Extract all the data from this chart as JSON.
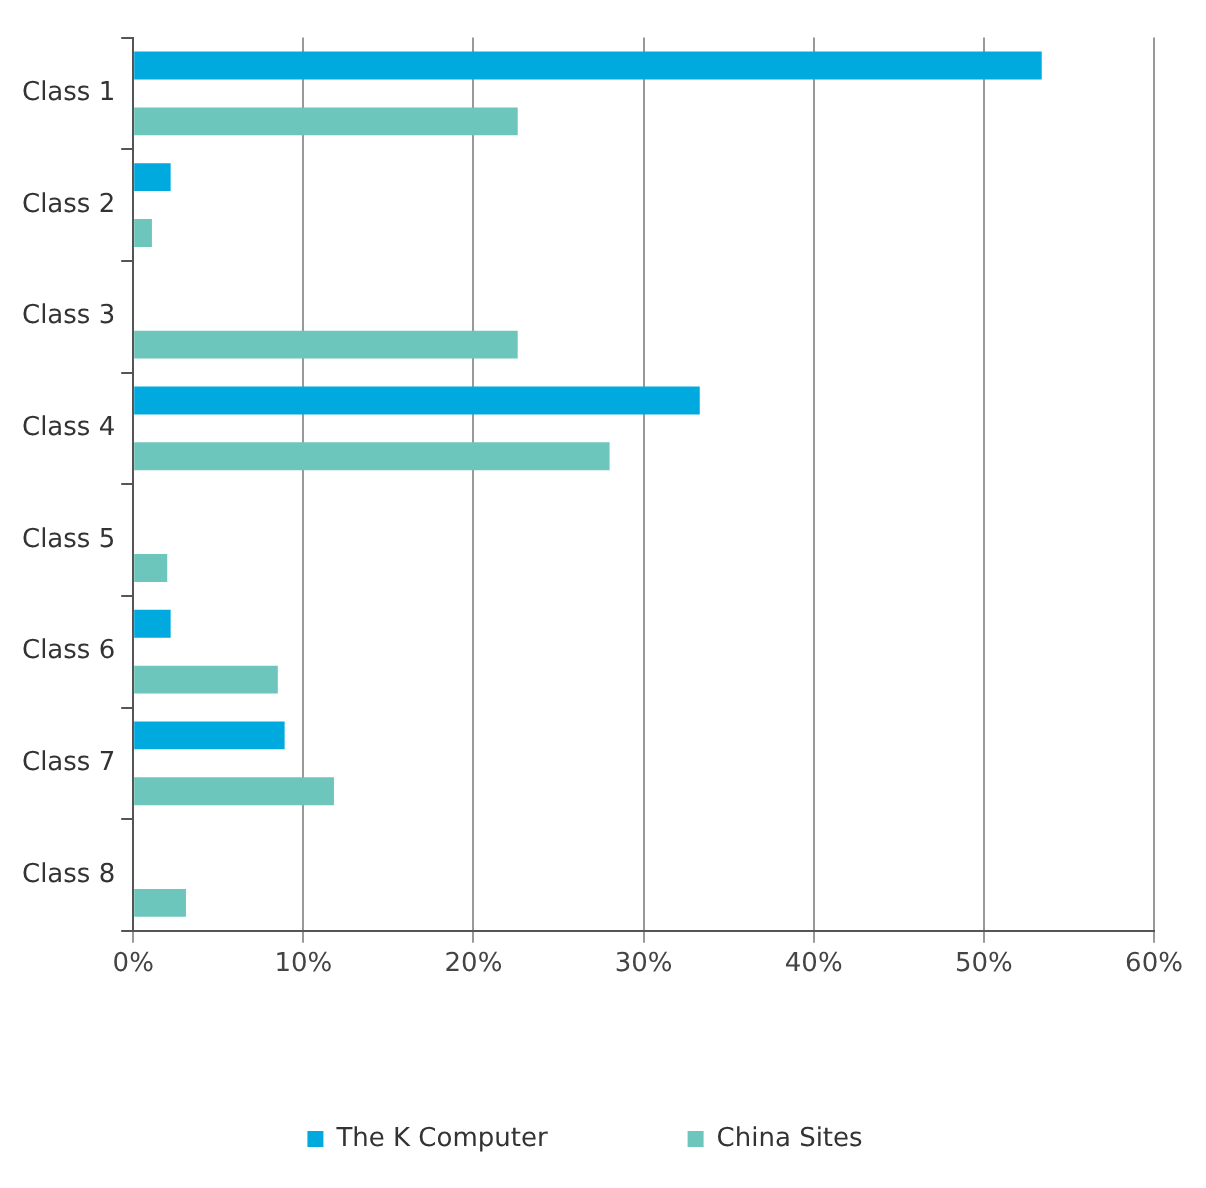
{
  "chart_data": {
    "type": "bar",
    "orientation": "horizontal",
    "categories": [
      "Class 1",
      "Class 2",
      "Class 3",
      "Class 4",
      "Class 5",
      "Class 6",
      "Class 7",
      "Class 8"
    ],
    "series": [
      {
        "name": "The K Computer",
        "color": "#00aade",
        "values": [
          53.4,
          2.2,
          0,
          33.3,
          0,
          2.2,
          8.9,
          0
        ]
      },
      {
        "name": "China Sites",
        "color": "#6cc6bb",
        "values": [
          22.6,
          1.1,
          22.6,
          28.0,
          2.0,
          8.5,
          11.8,
          3.1
        ]
      }
    ],
    "xlim": [
      0,
      60
    ],
    "xticks": [
      {
        "value": 0,
        "label": "0%"
      },
      {
        "value": 10,
        "label": "10%"
      },
      {
        "value": 20,
        "label": "20%"
      },
      {
        "value": 30,
        "label": "30%"
      },
      {
        "value": 40,
        "label": "40%"
      },
      {
        "value": 50,
        "label": "50%"
      },
      {
        "value": 60,
        "label": "60%"
      }
    ],
    "grid": "x",
    "legend": "bottom"
  }
}
